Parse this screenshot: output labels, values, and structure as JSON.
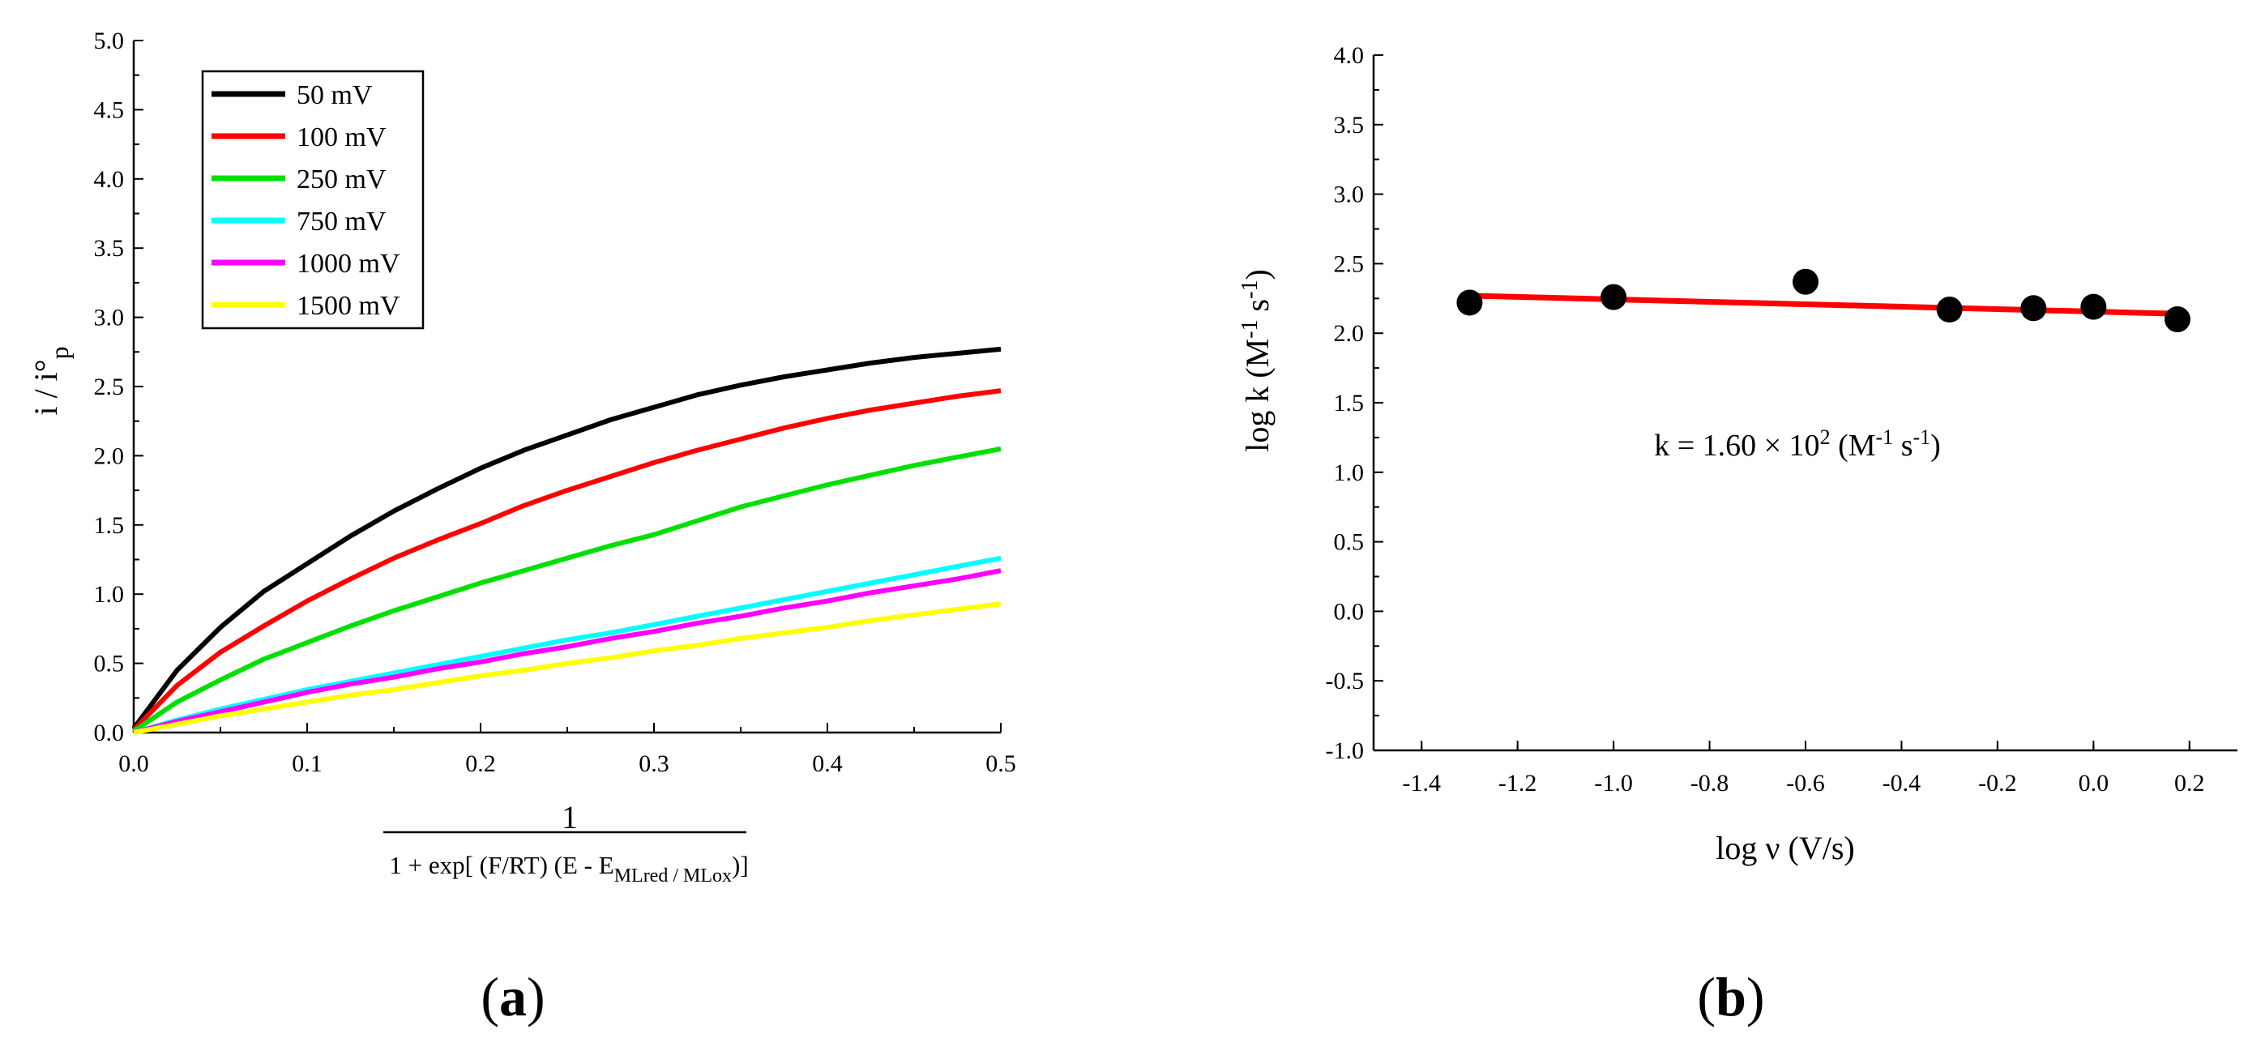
{
  "chart_data": [
    {
      "type": "line",
      "panel_label": "a",
      "ylabel": {
        "main": "i / i°",
        "sub": "p"
      },
      "xlabel": {
        "numerator": "1",
        "denominator_prefix": "1 + exp[ (F/RT) (E - E",
        "denominator_sub": "MLred / MLox",
        "denominator_suffix": ")]"
      },
      "xlim": [
        0,
        0.5
      ],
      "ylim": [
        0,
        5.0
      ],
      "xticks": [
        0.0,
        0.1,
        0.2,
        0.3,
        0.4,
        0.5
      ],
      "xtick_labels": [
        "0.0",
        "0.1",
        "0.2",
        "0.3",
        "0.4",
        "0.5"
      ],
      "yticks": [
        0.0,
        0.5,
        1.0,
        1.5,
        2.0,
        2.5,
        3.0,
        3.5,
        4.0,
        4.5,
        5.0
      ],
      "ytick_labels": [
        "0.0",
        "0.5",
        "1.0",
        "1.5",
        "2.0",
        "2.5",
        "3.0",
        "3.5",
        "4.0",
        "4.5",
        "5.0"
      ],
      "legend_position": "top-left",
      "x": [
        0,
        0.025,
        0.05,
        0.075,
        0.1,
        0.125,
        0.15,
        0.175,
        0.2,
        0.225,
        0.25,
        0.275,
        0.3,
        0.325,
        0.35,
        0.375,
        0.4,
        0.425,
        0.45,
        0.475,
        0.5
      ],
      "series": [
        {
          "name": "50 mV",
          "color": "#000000",
          "values": [
            0.03,
            0.45,
            0.76,
            1.02,
            1.22,
            1.42,
            1.6,
            1.76,
            1.91,
            2.04,
            2.15,
            2.26,
            2.35,
            2.44,
            2.51,
            2.57,
            2.62,
            2.67,
            2.71,
            2.74,
            2.77
          ]
        },
        {
          "name": "100 mV",
          "color": "#ff0000",
          "values": [
            0.02,
            0.34,
            0.58,
            0.77,
            0.95,
            1.11,
            1.26,
            1.39,
            1.51,
            1.64,
            1.75,
            1.85,
            1.95,
            2.04,
            2.12,
            2.2,
            2.27,
            2.33,
            2.38,
            2.43,
            2.47
          ]
        },
        {
          "name": "250 mV",
          "color": "#00e000",
          "values": [
            0.01,
            0.22,
            0.38,
            0.53,
            0.65,
            0.77,
            0.88,
            0.98,
            1.08,
            1.17,
            1.26,
            1.35,
            1.43,
            1.53,
            1.63,
            1.71,
            1.79,
            1.86,
            1.93,
            1.99,
            2.05
          ]
        },
        {
          "name": "750 mV",
          "color": "#00ffff",
          "values": [
            0.0,
            0.09,
            0.17,
            0.24,
            0.31,
            0.37,
            0.43,
            0.49,
            0.55,
            0.61,
            0.67,
            0.72,
            0.78,
            0.84,
            0.9,
            0.96,
            1.02,
            1.08,
            1.14,
            1.2,
            1.26
          ]
        },
        {
          "name": "1000 mV",
          "color": "#ff00ff",
          "values": [
            0.0,
            0.08,
            0.15,
            0.22,
            0.29,
            0.35,
            0.4,
            0.46,
            0.51,
            0.57,
            0.62,
            0.68,
            0.73,
            0.79,
            0.84,
            0.9,
            0.95,
            1.01,
            1.06,
            1.11,
            1.17
          ]
        },
        {
          "name": "1500 mV",
          "color": "#ffff00",
          "values": [
            0.0,
            0.06,
            0.12,
            0.17,
            0.22,
            0.27,
            0.31,
            0.36,
            0.41,
            0.45,
            0.5,
            0.54,
            0.59,
            0.63,
            0.68,
            0.72,
            0.76,
            0.81,
            0.85,
            0.89,
            0.93
          ]
        }
      ]
    },
    {
      "type": "scatter",
      "panel_label": "b",
      "ylabel": {
        "prefix": "log k (M",
        "sup1": "-1",
        "mid": " s",
        "sup2": "-1",
        "suffix": ")"
      },
      "xlabel": "log ν (V/s)",
      "xlim": [
        -1.5,
        0.3
      ],
      "ylim": [
        -1.0,
        4.0
      ],
      "xticks": [
        -1.4,
        -1.2,
        -1.0,
        -0.8,
        -0.6,
        -0.4,
        -0.2,
        0.0,
        0.2
      ],
      "xtick_labels": [
        "-1.4",
        "-1.2",
        "-1.0",
        "-0.8",
        "-0.6",
        "-0.4",
        "-0.2",
        "0.0",
        "0.2"
      ],
      "yticks": [
        -1.0,
        -0.5,
        0.0,
        0.5,
        1.0,
        1.5,
        2.0,
        2.5,
        3.0,
        3.5,
        4.0
      ],
      "ytick_labels": [
        "-1.0",
        "-0.5",
        "0.0",
        "0.5",
        "1.0",
        "1.5",
        "2.0",
        "2.5",
        "3.0",
        "3.5",
        "4.0"
      ],
      "points": {
        "color": "#000000",
        "x": [
          -1.3,
          -1.0,
          -0.6,
          -0.3,
          -0.125,
          0.0,
          0.175
        ],
        "y": [
          2.22,
          2.26,
          2.37,
          2.17,
          2.18,
          2.19,
          2.1
        ]
      },
      "fit": {
        "color": "#ff0000",
        "x": [
          -1.3,
          0.175
        ],
        "y": [
          2.27,
          2.14
        ]
      },
      "annotation": {
        "prefix": "k = 1.60 × 10",
        "sup1": "2",
        "mid": " (M",
        "sup2": "-1",
        "mid2": " s",
        "sup3": "-1",
        "suffix": ")"
      }
    }
  ]
}
